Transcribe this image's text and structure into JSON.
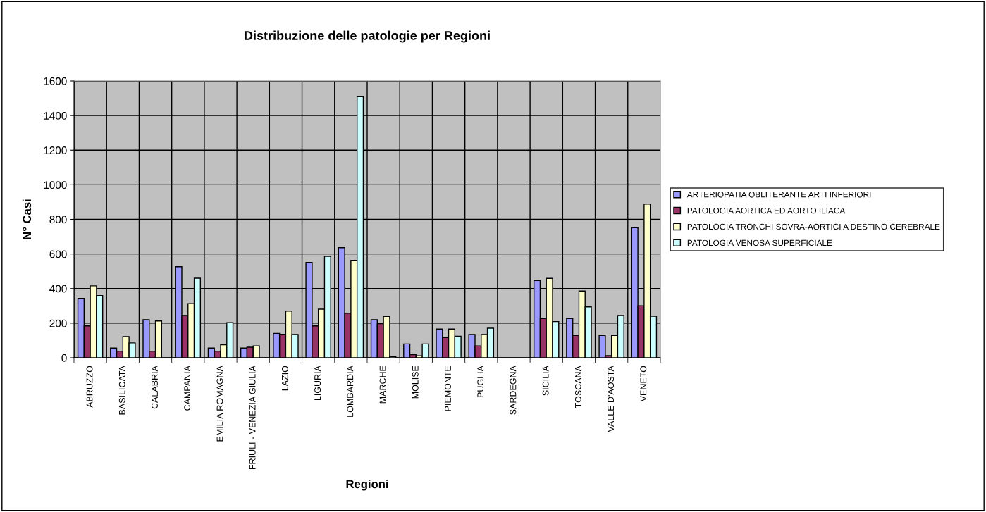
{
  "chart_data": {
    "type": "bar",
    "title": "Distribuzione delle patologie per Regioni",
    "xlabel": "Regioni",
    "ylabel": "N° Casi",
    "categories": [
      "ABRUZZO",
      "BASILICATA",
      "CALABRIA",
      "CAMPANIA",
      "EMILIA ROMAGNA",
      "FRIULI - VENEZIA GIULIA",
      "LAZIO",
      "LIGURIA",
      "LOMBARDIA",
      "MARCHE",
      "MOLISE",
      "PIEMONTE",
      "PUGLIA",
      "SARDEGNA",
      "SICILIA",
      "TOSCANA",
      "VALLE D'AOSTA",
      "VENETO"
    ],
    "series": [
      {
        "name": "ARTERIOPATIA OBLITERANTE ARTI INFERIORI",
        "color": "#9999ff",
        "values": [
          343,
          56,
          220,
          526,
          56,
          56,
          141,
          551,
          636,
          220,
          80,
          166,
          135,
          null,
          447,
          227,
          129,
          752
        ]
      },
      {
        "name": "PATOLOGIA AORTICA ED AORTO ILIACA",
        "color": "#993366",
        "values": [
          184,
          38,
          38,
          245,
          38,
          61,
          136,
          184,
          257,
          197,
          18,
          117,
          68,
          null,
          227,
          129,
          12,
          300
        ]
      },
      {
        "name": "PATOLOGIA TRONCHI SOVRA-AORTICI A DESTINO CEREBRALE",
        "color": "#ffffcc",
        "values": [
          416,
          122,
          213,
          313,
          75,
          68,
          269,
          281,
          563,
          239,
          11,
          166,
          135,
          null,
          459,
          386,
          129,
          888
        ]
      },
      {
        "name": "PATOLOGIA VENOSA SUPERFICIALE",
        "color": "#ccffff",
        "values": [
          360,
          86,
          null,
          460,
          203,
          null,
          135,
          586,
          1509,
          7,
          80,
          124,
          171,
          null,
          209,
          294,
          245,
          240
        ]
      }
    ],
    "ylim": [
      0,
      1600
    ],
    "yticks": [
      0,
      200,
      400,
      600,
      800,
      1000,
      1200,
      1400,
      1600
    ],
    "grid": true,
    "legend": "right"
  }
}
